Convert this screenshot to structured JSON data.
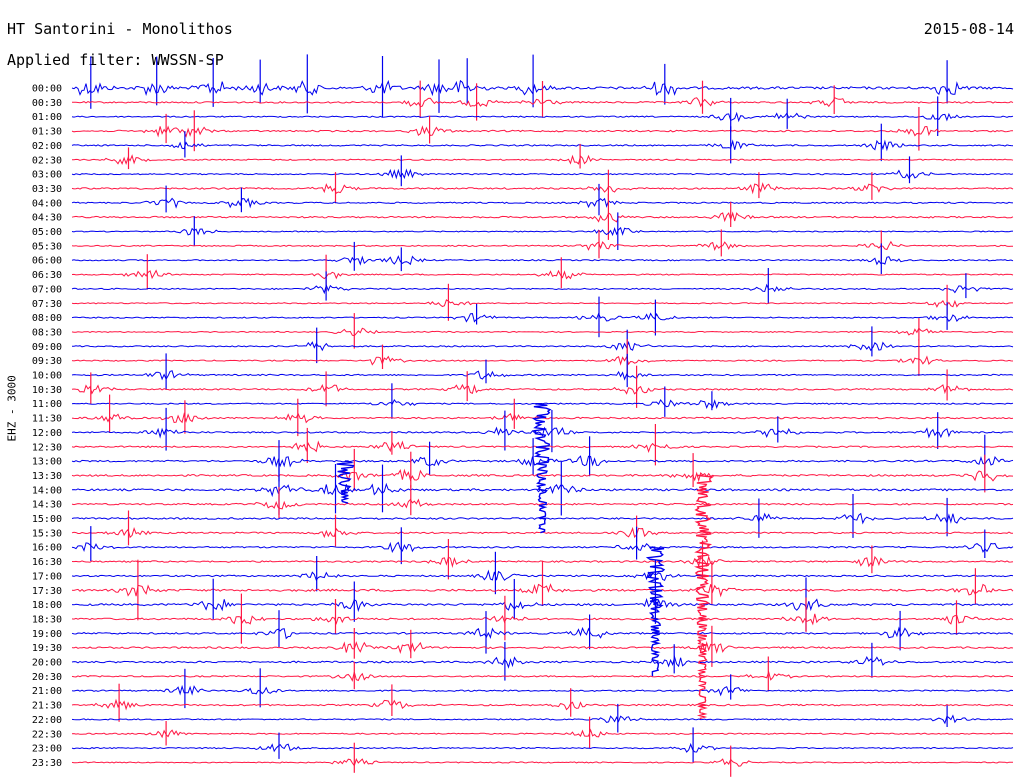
{
  "header": {
    "station": "HT Santorini - Monolithos",
    "date": "2015-08-14",
    "filter": "Applied filter: WWSSN-SP",
    "channel": "EHZ - 3000"
  },
  "colors": {
    "odd": "#0000ee",
    "even": "#ff1744"
  },
  "chart_data": {
    "type": "line",
    "title": "HT Santorini - Monolithos",
    "subtitle": "Applied filter: WWSSN-SP",
    "ylabel": "EHZ - 3000",
    "xlabel": "",
    "rows": [
      "00:00",
      "00:30",
      "01:00",
      "01:30",
      "02:00",
      "02:30",
      "03:00",
      "03:30",
      "04:00",
      "04:30",
      "05:00",
      "05:30",
      "06:00",
      "06:30",
      "07:00",
      "07:30",
      "08:00",
      "08:30",
      "09:00",
      "09:30",
      "10:00",
      "10:30",
      "11:00",
      "11:30",
      "12:00",
      "12:30",
      "13:00",
      "13:30",
      "14:00",
      "14:30",
      "15:00",
      "15:30",
      "16:00",
      "16:30",
      "17:00",
      "17:30",
      "18:00",
      "18:30",
      "19:00",
      "19:30",
      "20:00",
      "20:30",
      "21:00",
      "21:30",
      "22:00",
      "22:30",
      "23:00",
      "23:30"
    ],
    "row_minutes": 30,
    "grid": false,
    "legend": "none",
    "traces": [
      {
        "row": "00:00",
        "amplitude": 0.6,
        "events": [
          0.02,
          0.09,
          0.15,
          0.2,
          0.25,
          0.33,
          0.39,
          0.42,
          0.49,
          0.63,
          0.93
        ]
      },
      {
        "row": "00:30",
        "amplitude": 0.3,
        "events": [
          0.37,
          0.43,
          0.5,
          0.67,
          0.81
        ]
      },
      {
        "row": "01:00",
        "amplitude": 0.2,
        "events": [
          0.7,
          0.76,
          0.92
        ]
      },
      {
        "row": "01:30",
        "amplitude": 0.3,
        "events": [
          0.1,
          0.13,
          0.38,
          0.9
        ]
      },
      {
        "row": "02:00",
        "amplitude": 0.25,
        "events": [
          0.12,
          0.7,
          0.86
        ]
      },
      {
        "row": "02:30",
        "amplitude": 0.2,
        "events": [
          0.06,
          0.54
        ]
      },
      {
        "row": "03:00",
        "amplitude": 0.2,
        "events": [
          0.35,
          0.89
        ]
      },
      {
        "row": "03:30",
        "amplitude": 0.3,
        "events": [
          0.28,
          0.57,
          0.73,
          0.85
        ]
      },
      {
        "row": "04:00",
        "amplitude": 0.25,
        "events": [
          0.1,
          0.18,
          0.56
        ]
      },
      {
        "row": "04:30",
        "amplitude": 0.3,
        "events": [
          0.57,
          0.7
        ]
      },
      {
        "row": "05:00",
        "amplitude": 0.15,
        "events": [
          0.13,
          0.58
        ]
      },
      {
        "row": "05:30",
        "amplitude": 0.2,
        "events": [
          0.56,
          0.69,
          0.86
        ]
      },
      {
        "row": "06:00",
        "amplitude": 0.2,
        "events": [
          0.3,
          0.35,
          0.86
        ]
      },
      {
        "row": "06:30",
        "amplitude": 0.2,
        "events": [
          0.08,
          0.27,
          0.52
        ]
      },
      {
        "row": "07:00",
        "amplitude": 0.2,
        "events": [
          0.27,
          0.74,
          0.95
        ]
      },
      {
        "row": "07:30",
        "amplitude": 0.15,
        "events": [
          0.4,
          0.93
        ]
      },
      {
        "row": "08:00",
        "amplitude": 0.2,
        "events": [
          0.43,
          0.56,
          0.62,
          0.93
        ]
      },
      {
        "row": "08:30",
        "amplitude": 0.15,
        "events": [
          0.3,
          0.9
        ]
      },
      {
        "row": "09:00",
        "amplitude": 0.2,
        "events": [
          0.26,
          0.59,
          0.85
        ]
      },
      {
        "row": "09:30",
        "amplitude": 0.2,
        "events": [
          0.33,
          0.59,
          0.9
        ]
      },
      {
        "row": "10:00",
        "amplitude": 0.25,
        "events": [
          0.1,
          0.44,
          0.59
        ]
      },
      {
        "row": "10:30",
        "amplitude": 0.3,
        "events": [
          0.02,
          0.27,
          0.42,
          0.6,
          0.93
        ]
      },
      {
        "row": "11:00",
        "amplitude": 0.2,
        "events": [
          0.34,
          0.63,
          0.68
        ]
      },
      {
        "row": "11:30",
        "amplitude": 0.3,
        "events": [
          0.04,
          0.12,
          0.24,
          0.47
        ]
      },
      {
        "row": "12:00",
        "amplitude": 0.3,
        "events": [
          0.1,
          0.46,
          0.51,
          0.75,
          0.92
        ]
      },
      {
        "row": "12:30",
        "amplitude": 0.3,
        "events": [
          0.25,
          0.34,
          0.62
        ]
      },
      {
        "row": "13:00",
        "amplitude": 0.35,
        "events": [
          0.22,
          0.38,
          0.49,
          0.55,
          0.97
        ]
      },
      {
        "row": "13:30",
        "amplitude": 0.4,
        "events": [
          0.3,
          0.36,
          0.66,
          0.97
        ]
      },
      {
        "row": "14:00",
        "amplitude": 0.45,
        "events": [
          0.22,
          0.28,
          0.33,
          0.52
        ]
      },
      {
        "row": "14:30",
        "amplitude": 0.3,
        "events": [
          0.22,
          0.36
        ]
      },
      {
        "row": "15:00",
        "amplitude": 0.35,
        "events": [
          0.73,
          0.83,
          0.93
        ]
      },
      {
        "row": "15:30",
        "amplitude": 0.3,
        "events": [
          0.06,
          0.28,
          0.6
        ]
      },
      {
        "row": "16:00",
        "amplitude": 0.3,
        "events": [
          0.02,
          0.35,
          0.6,
          0.97
        ]
      },
      {
        "row": "16:30",
        "amplitude": 0.3,
        "events": [
          0.4,
          0.67,
          0.85
        ]
      },
      {
        "row": "17:00",
        "amplitude": 0.3,
        "events": [
          0.26,
          0.45,
          0.62
        ]
      },
      {
        "row": "17:30",
        "amplitude": 0.5,
        "events": [
          0.07,
          0.5,
          0.68,
          0.96
        ]
      },
      {
        "row": "18:00",
        "amplitude": 0.45,
        "events": [
          0.15,
          0.3,
          0.47,
          0.62,
          0.78
        ]
      },
      {
        "row": "18:30",
        "amplitude": 0.35,
        "events": [
          0.18,
          0.28,
          0.46,
          0.78,
          0.94
        ]
      },
      {
        "row": "19:00",
        "amplitude": 0.35,
        "events": [
          0.22,
          0.44,
          0.55,
          0.88
        ]
      },
      {
        "row": "19:30",
        "amplitude": 0.35,
        "events": [
          0.3,
          0.36,
          0.68
        ]
      },
      {
        "row": "20:00",
        "amplitude": 0.35,
        "events": [
          0.46,
          0.64,
          0.85
        ]
      },
      {
        "row": "20:30",
        "amplitude": 0.25,
        "events": [
          0.3,
          0.74
        ]
      },
      {
        "row": "21:00",
        "amplitude": 0.25,
        "events": [
          0.12,
          0.2,
          0.7
        ]
      },
      {
        "row": "21:30",
        "amplitude": 0.3,
        "events": [
          0.05,
          0.34,
          0.53
        ]
      },
      {
        "row": "22:00",
        "amplitude": 0.2,
        "events": [
          0.58,
          0.93
        ]
      },
      {
        "row": "22:30",
        "amplitude": 0.2,
        "events": [
          0.1,
          0.55
        ]
      },
      {
        "row": "23:00",
        "amplitude": 0.2,
        "events": [
          0.22,
          0.66
        ]
      },
      {
        "row": "23:30",
        "amplitude": 0.15,
        "events": [
          0.3,
          0.7
        ]
      }
    ],
    "major_events": [
      {
        "start_row": "13:30",
        "end_row": "22:00",
        "x": 0.67,
        "color": "#ff1744"
      },
      {
        "start_row": "16:00",
        "end_row": "20:30",
        "x": 0.62,
        "color": "#0000ee"
      },
      {
        "start_row": "11:00",
        "end_row": "15:30",
        "x": 0.5,
        "color": "#0000ee"
      },
      {
        "start_row": "13:00",
        "end_row": "14:30",
        "x": 0.29,
        "color": "#0000ee"
      }
    ]
  }
}
